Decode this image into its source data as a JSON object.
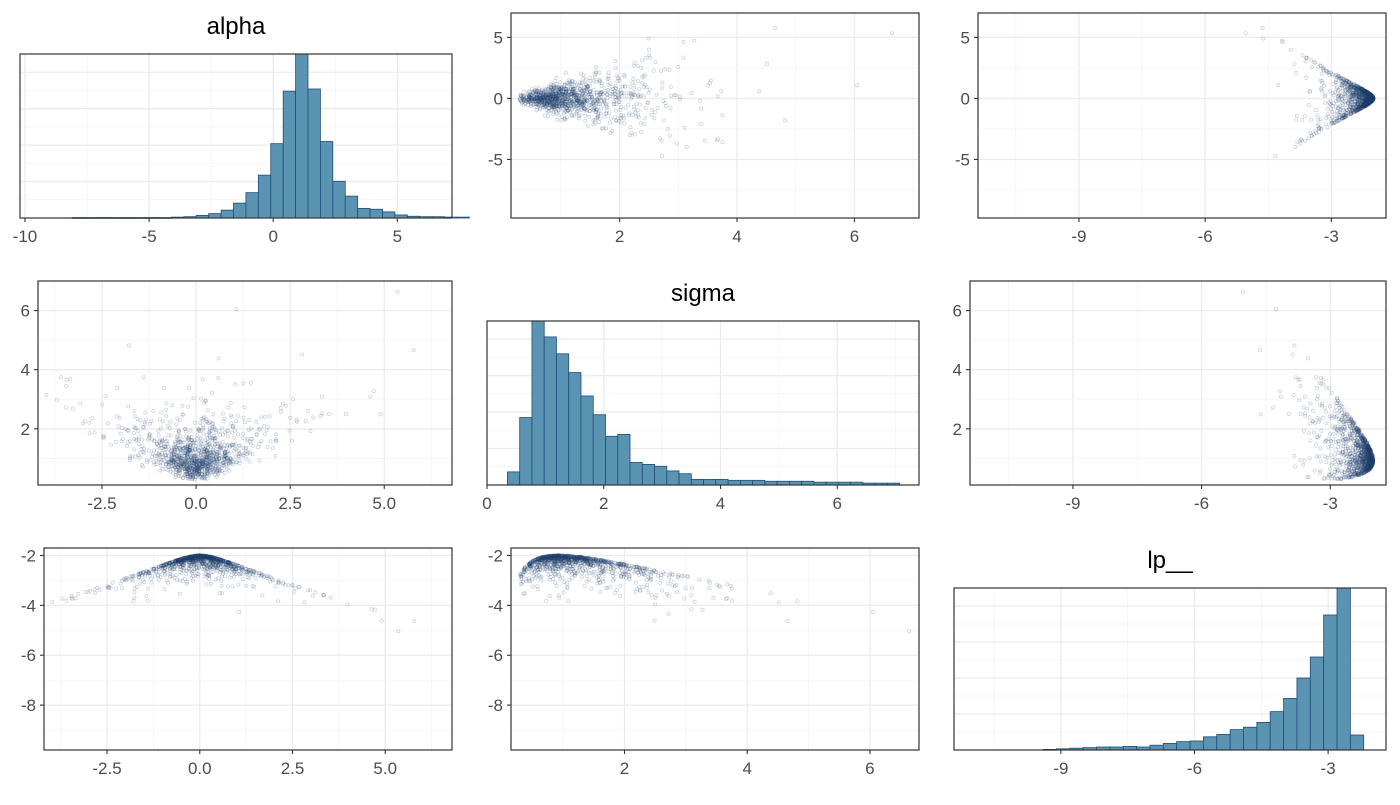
{
  "chart_data": {
    "type": "pairs",
    "variables": [
      "alpha",
      "sigma",
      "lp__"
    ],
    "colors": {
      "bar_fill": "#5b93b3",
      "bar_edge": "#1f4e79",
      "point": "#1f3f6e"
    },
    "panels": [
      {
        "id": "alpha-hist",
        "type": "bar",
        "title": "alpha",
        "xlim": [
          -10.2,
          7.2
        ],
        "xticks": [
          {
            "v": -10,
            "label": "-10"
          },
          {
            "v": -5,
            "label": "-5"
          },
          {
            "v": 0,
            "label": "0"
          },
          {
            "v": 5,
            "label": "5"
          }
        ],
        "bins": {
          "start": -8.1,
          "width": 0.5
        },
        "counts": [
          1,
          1,
          1,
          1,
          1,
          1,
          1,
          1,
          2,
          3,
          6,
          10,
          18,
          34,
          58,
          98,
          170,
          290,
          375,
          295,
          175,
          84,
          50,
          22,
          20,
          14,
          7,
          4,
          3,
          3,
          2,
          2
        ]
      },
      {
        "id": "sigma-vs-alpha",
        "type": "scatter",
        "x_var": "sigma",
        "y_var": "alpha",
        "xlim": [
          0.15,
          7.1
        ],
        "ylim": [
          -9.8,
          7
        ],
        "xticks": [
          {
            "v": 2,
            "label": "2"
          },
          {
            "v": 4,
            "label": "4"
          },
          {
            "v": 6,
            "label": "6"
          }
        ],
        "yticks": [
          {
            "v": 5,
            "label": "5"
          },
          {
            "v": 0,
            "label": "0"
          },
          {
            "v": -5,
            "label": "-5"
          }
        ]
      },
      {
        "id": "lp-vs-alpha",
        "type": "scatter",
        "x_var": "lp__",
        "y_var": "alpha",
        "xlim": [
          -11.4,
          -1.7
        ],
        "ylim": [
          -9.8,
          7
        ],
        "xticks": [
          {
            "v": -9,
            "label": "-9"
          },
          {
            "v": -6,
            "label": "-6"
          },
          {
            "v": -3,
            "label": "-3"
          }
        ],
        "yticks": [
          {
            "v": 5,
            "label": "5"
          },
          {
            "v": 0,
            "label": "0"
          },
          {
            "v": -5,
            "label": "-5"
          }
        ]
      },
      {
        "id": "alpha-vs-sigma",
        "type": "scatter",
        "x_var": "alpha",
        "y_var": "sigma",
        "xlim": [
          -4.2,
          6.8
        ],
        "ylim": [
          0.1,
          7
        ],
        "xticks": [
          {
            "v": -2.5,
            "label": "-2.5"
          },
          {
            "v": 0,
            "label": "0.0"
          },
          {
            "v": 2.5,
            "label": "2.5"
          },
          {
            "v": 5,
            "label": "5.0"
          }
        ],
        "yticks": [
          {
            "v": 6,
            "label": "6"
          },
          {
            "v": 4,
            "label": "4"
          },
          {
            "v": 2,
            "label": "2"
          }
        ]
      },
      {
        "id": "sigma-hist",
        "type": "bar",
        "title": "sigma",
        "xlim": [
          0,
          7.4
        ],
        "xticks": [
          {
            "v": 0,
            "label": "0"
          },
          {
            "v": 2,
            "label": "2"
          },
          {
            "v": 4,
            "label": "4"
          },
          {
            "v": 6,
            "label": "6"
          }
        ],
        "bins": {
          "start": 0.35,
          "width": 0.21
        },
        "counts": [
          14,
          72,
          175,
          158,
          140,
          120,
          95,
          75,
          52,
          54,
          24,
          22,
          20,
          15,
          12,
          6,
          6,
          6,
          5,
          5,
          5,
          4,
          4,
          4,
          4,
          3,
          3,
          3,
          3,
          2,
          2,
          2
        ]
      },
      {
        "id": "lp-vs-sigma",
        "type": "scatter",
        "x_var": "lp__",
        "y_var": "sigma",
        "xlim": [
          -11.4,
          -1.7
        ],
        "ylim": [
          0.1,
          7
        ],
        "xticks": [
          {
            "v": -9,
            "label": "-9"
          },
          {
            "v": -6,
            "label": "-6"
          },
          {
            "v": -3,
            "label": "-3"
          }
        ],
        "yticks": [
          {
            "v": 6,
            "label": "6"
          },
          {
            "v": 4,
            "label": "4"
          },
          {
            "v": 2,
            "label": "2"
          }
        ]
      },
      {
        "id": "alpha-vs-lp",
        "type": "scatter",
        "x_var": "alpha",
        "y_var": "lp__",
        "xlim": [
          -4.2,
          6.8
        ],
        "ylim": [
          -9.8,
          -1.7
        ],
        "xticks": [
          {
            "v": -2.5,
            "label": "-2.5"
          },
          {
            "v": 0,
            "label": "0.0"
          },
          {
            "v": 2.5,
            "label": "2.5"
          },
          {
            "v": 5,
            "label": "5.0"
          }
        ],
        "yticks": [
          {
            "v": -2,
            "label": "-2"
          },
          {
            "v": -4,
            "label": "-4"
          },
          {
            "v": -6,
            "label": "-6"
          },
          {
            "v": -8,
            "label": "-8"
          }
        ]
      },
      {
        "id": "sigma-vs-lp",
        "type": "scatter",
        "x_var": "sigma",
        "y_var": "lp__",
        "xlim": [
          0.15,
          6.8
        ],
        "ylim": [
          -9.8,
          -1.7
        ],
        "xticks": [
          {
            "v": 2,
            "label": "2"
          },
          {
            "v": 4,
            "label": "4"
          },
          {
            "v": 6,
            "label": "6"
          }
        ],
        "yticks": [
          {
            "v": -2,
            "label": "-2"
          },
          {
            "v": -4,
            "label": "-4"
          },
          {
            "v": -6,
            "label": "-6"
          },
          {
            "v": -8,
            "label": "-8"
          }
        ]
      },
      {
        "id": "lp-hist",
        "type": "bar",
        "title": "lp__",
        "xlim": [
          -11.4,
          -1.7
        ],
        "xticks": [
          {
            "v": -9,
            "label": "-9"
          },
          {
            "v": -6,
            "label": "-6"
          },
          {
            "v": -3,
            "label": "-3"
          }
        ],
        "bins": {
          "start": -11.2,
          "width": 0.3
        },
        "counts": [
          0,
          0,
          0,
          0,
          0,
          0,
          1,
          2,
          3,
          4,
          5,
          5,
          6,
          5,
          8,
          11,
          14,
          15,
          22,
          26,
          34,
          38,
          46,
          64,
          86,
          120,
          155,
          225,
          270,
          25
        ]
      }
    ]
  }
}
